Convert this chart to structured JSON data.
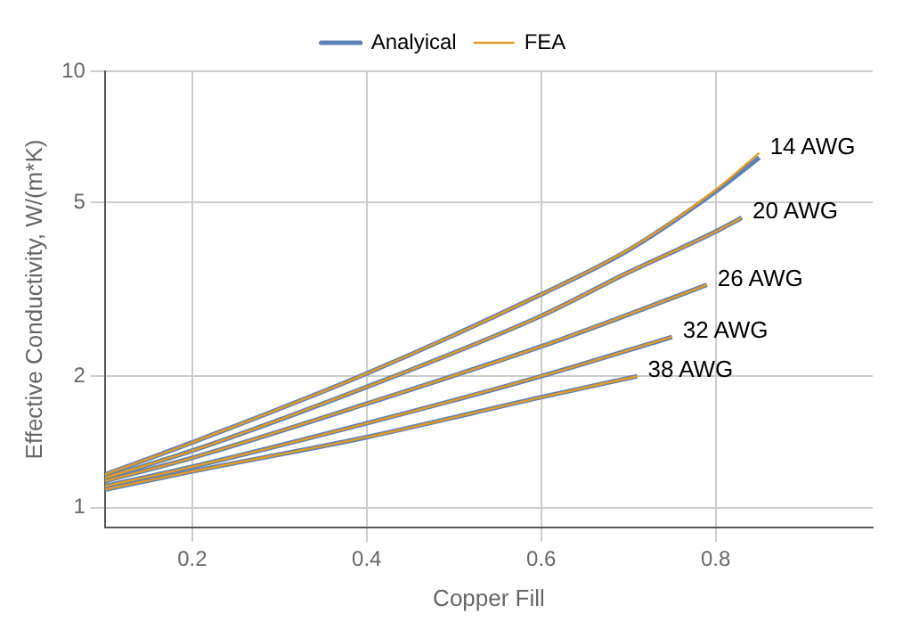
{
  "chart_data": {
    "type": "line",
    "xlabel": "Copper Fill",
    "ylabel": "Effective Conductivity, W/(m*K)",
    "log": "y",
    "grid": true,
    "legend": "top",
    "marker": "none",
    "line_style": "solid",
    "xlim": [
      0.1,
      0.98
    ],
    "xticks": [
      0.2,
      0.4,
      0.6,
      0.8
    ],
    "ylim": [
      0.9,
      10
    ],
    "yticks": [
      1,
      2,
      5,
      10
    ],
    "series": [
      {
        "name": "Analyical",
        "color": "#5e81b5",
        "x": [
          0.1,
          0.2,
          0.4,
          0.6,
          0.7,
          0.8,
          0.85
        ],
        "values": [
          1.19,
          1.41,
          2.03,
          3.08,
          3.89,
          5.3,
          6.34
        ]
      },
      {
        "color": "#5e81b5",
        "x": [
          0.1,
          0.2,
          0.4,
          0.6,
          0.7,
          0.8,
          0.83
        ],
        "values": [
          1.17,
          1.35,
          1.89,
          2.75,
          3.46,
          4.29,
          4.62
        ]
      },
      {
        "color": "#5e81b5",
        "x": [
          0.1,
          0.2,
          0.4,
          0.6,
          0.7,
          0.79
        ],
        "values": [
          1.15,
          1.3,
          1.73,
          2.34,
          2.77,
          3.24
        ]
      },
      {
        "color": "#5e81b5",
        "x": [
          0.1,
          0.2,
          0.4,
          0.6,
          0.75
        ],
        "values": [
          1.12,
          1.24,
          1.56,
          2.0,
          2.46
        ]
      },
      {
        "color": "#5e81b5",
        "x": [
          0.1,
          0.2,
          0.4,
          0.6,
          0.71
        ],
        "values": [
          1.1,
          1.21,
          1.45,
          1.79,
          2.0
        ]
      },
      {
        "name": "FEA",
        "color": "#e19c24",
        "x": [
          0.1,
          0.2,
          0.4,
          0.6,
          0.7,
          0.8,
          0.85
        ],
        "values": [
          1.19,
          1.41,
          2.03,
          3.08,
          3.9,
          5.35,
          6.5
        ]
      },
      {
        "color": "#e19c24",
        "x": [
          0.1,
          0.2,
          0.4,
          0.6,
          0.7,
          0.8,
          0.83
        ],
        "values": [
          1.17,
          1.35,
          1.89,
          2.75,
          3.46,
          4.29,
          4.62
        ]
      },
      {
        "color": "#e19c24",
        "x": [
          0.1,
          0.2,
          0.4,
          0.6,
          0.7,
          0.79
        ],
        "values": [
          1.15,
          1.3,
          1.73,
          2.34,
          2.77,
          3.24
        ]
      },
      {
        "color": "#e19c24",
        "x": [
          0.1,
          0.2,
          0.4,
          0.6,
          0.75
        ],
        "values": [
          1.12,
          1.24,
          1.56,
          2.0,
          2.46
        ]
      },
      {
        "color": "#e19c24",
        "x": [
          0.1,
          0.2,
          0.4,
          0.6,
          0.71
        ],
        "values": [
          1.1,
          1.21,
          1.45,
          1.79,
          2.0
        ]
      }
    ],
    "annotations": [
      {
        "text": "14 AWG",
        "x": 0.85,
        "y": 6.5
      },
      {
        "text": "20 AWG",
        "x": 0.83,
        "y": 4.62
      },
      {
        "text": "26 AWG",
        "x": 0.79,
        "y": 3.24
      },
      {
        "text": "32 AWG",
        "x": 0.75,
        "y": 2.46
      },
      {
        "text": "38 AWG",
        "x": 0.71,
        "y": 2.0
      }
    ]
  }
}
